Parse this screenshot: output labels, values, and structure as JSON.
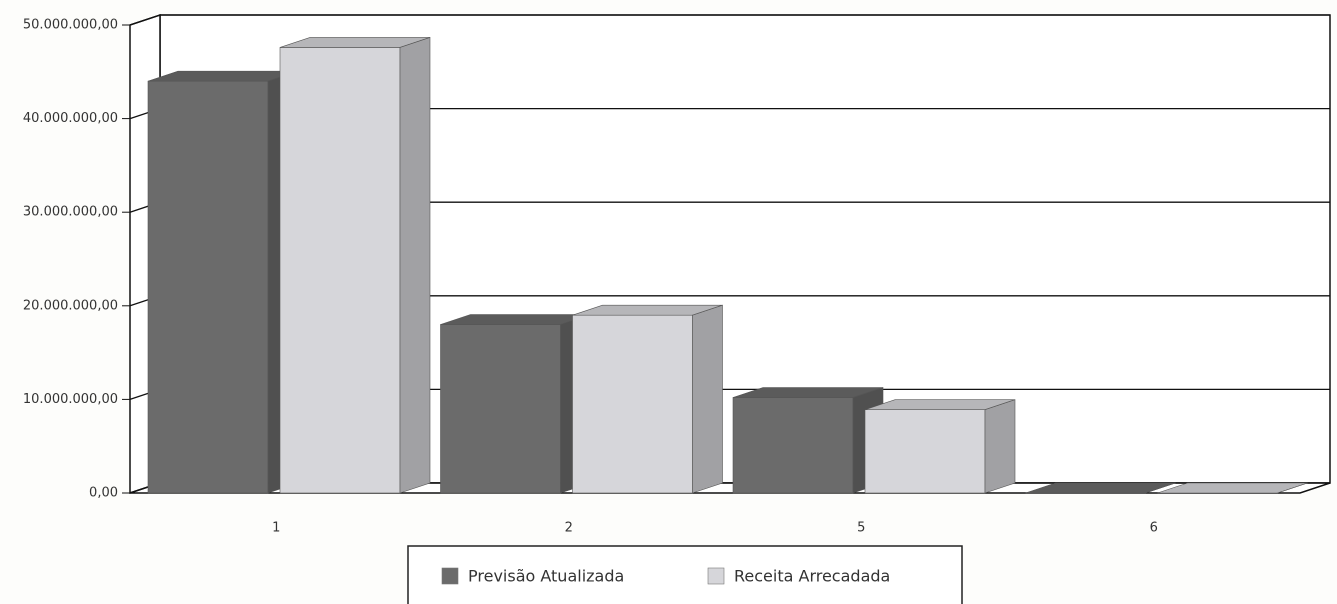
{
  "chart_data": {
    "type": "bar3d",
    "categories": [
      "1",
      "2",
      "5",
      "6"
    ],
    "series": [
      {
        "name": "Previsão Atualizada",
        "color": "#6b6b6b",
        "values": [
          44000000,
          18000000,
          10200000,
          0
        ]
      },
      {
        "name": "Receita Arrecadada",
        "color": "#d6d6da",
        "values": [
          47600000,
          19000000,
          8900000,
          0
        ]
      }
    ],
    "ylim": [
      0,
      50000000
    ],
    "yticks": [
      {
        "value": 0,
        "label": "0,00"
      },
      {
        "value": 10000000,
        "label": "10.000.000,00"
      },
      {
        "value": 20000000,
        "label": "20.000.000,00"
      },
      {
        "value": 30000000,
        "label": "30.000.000,00"
      },
      {
        "value": 40000000,
        "label": "40.000.000,00"
      },
      {
        "value": 50000000,
        "label": "50.000.000,00"
      }
    ],
    "grid": true,
    "legend": "bottom"
  }
}
